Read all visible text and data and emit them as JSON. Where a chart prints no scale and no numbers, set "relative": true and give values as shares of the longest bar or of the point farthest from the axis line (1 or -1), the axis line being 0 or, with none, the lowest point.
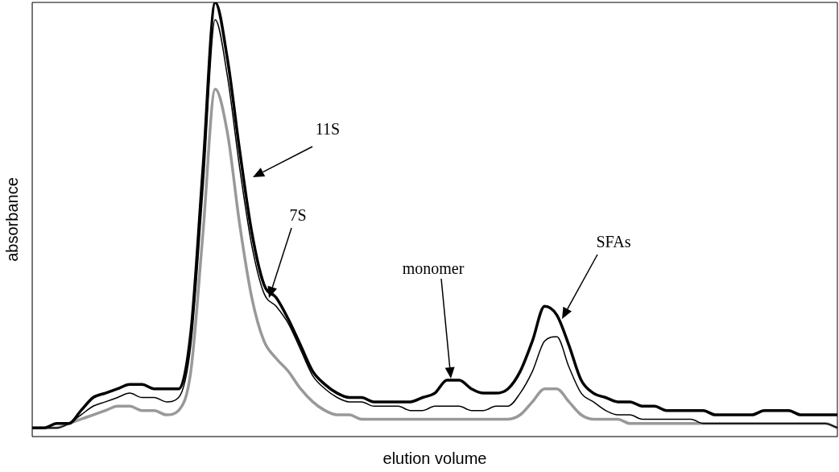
{
  "chart_data": {
    "type": "line",
    "relative": true,
    "xlabel": "elution volume",
    "ylabel": "absorbance",
    "marker": "none",
    "line_style": "solid",
    "categories": [
      null,
      null,
      null,
      null,
      null,
      null,
      null,
      null,
      null,
      null,
      null,
      null,
      null,
      null,
      null,
      null,
      null,
      null,
      null,
      null,
      null,
      null,
      null,
      null,
      null,
      null,
      null,
      null,
      null,
      null,
      null,
      null,
      null,
      null,
      null,
      null,
      null,
      null,
      null,
      null,
      null,
      null,
      null,
      null,
      null,
      null,
      null,
      null,
      null,
      null,
      null,
      null,
      null,
      null,
      null,
      null,
      null,
      null,
      null,
      null,
      null,
      null,
      null,
      null,
      null,
      null,
      null
    ],
    "series": [
      {
        "color": "#000000",
        "values": [
          0.02,
          0.02,
          0.03,
          0.03,
          0.06,
          0.09,
          0.1,
          0.11,
          0.12,
          0.12,
          0.11,
          0.11,
          0.11,
          0.24,
          0.62,
          1.0,
          0.87,
          0.66,
          0.47,
          0.35,
          0.32,
          0.27,
          0.21,
          0.15,
          0.12,
          0.1,
          0.09,
          0.09,
          0.08,
          0.08,
          0.08,
          0.08,
          0.09,
          0.1,
          0.13,
          0.13,
          0.11,
          0.1,
          0.1,
          0.11,
          0.15,
          0.22,
          0.3,
          0.28,
          0.21,
          0.13,
          0.1,
          0.09,
          0.08,
          0.08,
          0.07,
          0.07,
          0.06,
          0.06,
          0.06,
          0.06,
          0.05,
          0.05,
          0.05,
          0.05,
          0.06,
          0.06,
          0.06,
          0.05,
          0.05,
          0.05,
          0.05
        ]
      },
      {
        "color": "#000000",
        "values": [
          0.02,
          0.02,
          0.02,
          0.03,
          0.05,
          0.07,
          0.08,
          0.09,
          0.1,
          0.09,
          0.09,
          0.08,
          0.09,
          0.21,
          0.57,
          0.96,
          0.83,
          0.62,
          0.44,
          0.33,
          0.3,
          0.26,
          0.2,
          0.14,
          0.11,
          0.09,
          0.08,
          0.08,
          0.07,
          0.07,
          0.07,
          0.06,
          0.06,
          0.07,
          0.07,
          0.07,
          0.06,
          0.06,
          0.07,
          0.07,
          0.1,
          0.15,
          0.22,
          0.23,
          0.16,
          0.1,
          0.08,
          0.06,
          0.05,
          0.05,
          0.04,
          0.04,
          0.04,
          0.04,
          0.04,
          0.03,
          0.03,
          0.03,
          0.03,
          0.03,
          0.03,
          0.03,
          0.03,
          0.03,
          0.03,
          0.03,
          0.02
        ]
      },
      {
        "color": "#999999",
        "values": [
          0.02,
          0.02,
          0.02,
          0.03,
          0.04,
          0.05,
          0.06,
          0.07,
          0.07,
          0.06,
          0.06,
          0.05,
          0.06,
          0.15,
          0.47,
          0.8,
          0.7,
          0.49,
          0.32,
          0.22,
          0.18,
          0.15,
          0.11,
          0.08,
          0.06,
          0.05,
          0.05,
          0.04,
          0.04,
          0.04,
          0.04,
          0.04,
          0.04,
          0.04,
          0.04,
          0.04,
          0.04,
          0.04,
          0.04,
          0.04,
          0.05,
          0.08,
          0.11,
          0.11,
          0.08,
          0.05,
          0.04,
          0.04,
          0.04,
          0.03,
          0.03,
          0.03,
          0.03,
          0.03,
          0.03,
          0.03,
          0.03,
          0.03,
          0.03,
          0.03,
          0.03,
          0.03,
          0.03,
          0.03,
          0.03,
          0.03,
          0.02
        ]
      }
    ],
    "annotations": [
      "11S",
      "7S",
      "monomer",
      "SFAs"
    ]
  }
}
